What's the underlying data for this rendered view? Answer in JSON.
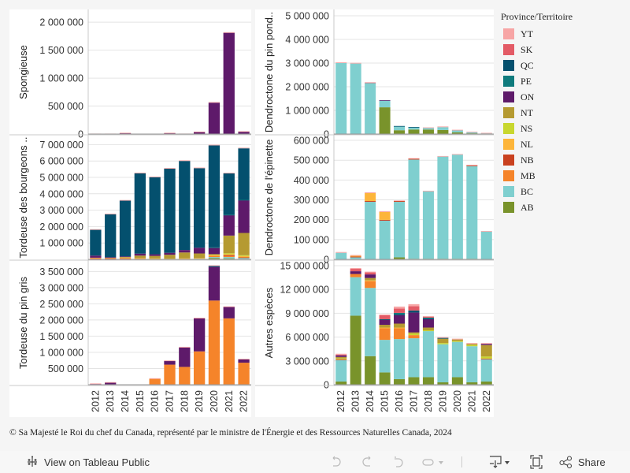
{
  "legend": {
    "title": "Province/Territoire",
    "items": [
      {
        "code": "YT",
        "color": "#f7a5a5"
      },
      {
        "code": "SK",
        "color": "#e35b66"
      },
      {
        "code": "QC",
        "color": "#04506e"
      },
      {
        "code": "PE",
        "color": "#0f7b7d"
      },
      {
        "code": "ON",
        "color": "#5e1a6a"
      },
      {
        "code": "NT",
        "color": "#b59a31"
      },
      {
        "code": "NS",
        "color": "#c8d72f"
      },
      {
        "code": "NL",
        "color": "#fdb53a"
      },
      {
        "code": "NB",
        "color": "#c9411f"
      },
      {
        "code": "MB",
        "color": "#f5842a"
      },
      {
        "code": "BC",
        "color": "#7fcfcf"
      },
      {
        "code": "AB",
        "color": "#79932b"
      }
    ]
  },
  "footer": {
    "copyright": "© Sa Majesté le Roi du chef du Canada, représenté par le ministre de l'Énergie et des Ressources Naturelles Canada, 2024"
  },
  "toolbar": {
    "view_label": "View on Tableau Public",
    "share_label": "Share",
    "icons": [
      "tableau-logo-icon",
      "undo-icon",
      "redo-icon",
      "revert-icon",
      "refresh-icon",
      "download-icon",
      "fullscreen-icon",
      "share-icon"
    ]
  },
  "chart_data": [
    {
      "type": "bar",
      "stacked": true,
      "title": "",
      "ylabel": "Spongieuse",
      "xlabel": "",
      "categories": [
        "2012",
        "2013",
        "2014",
        "2015",
        "2016",
        "2017",
        "2018",
        "2019",
        "2020",
        "2021",
        "2022"
      ],
      "ylim": [
        0,
        2200000
      ],
      "yticks": [
        0,
        500000,
        1000000,
        1500000,
        2000000
      ],
      "yticklabels": [
        "0",
        "500 000",
        "1 000 000",
        "1 500 000",
        "2 000 000"
      ],
      "show_xticks": false,
      "grid": true,
      "series": [
        {
          "name": "ON",
          "values": [
            0,
            0,
            15000,
            0,
            0,
            15000,
            0,
            35000,
            560000,
            1810000,
            40000
          ]
        },
        {
          "name": "YT",
          "values": [
            8000,
            8000,
            8000,
            0,
            0,
            8000,
            8000,
            8000,
            12000,
            12000,
            10000
          ]
        }
      ]
    },
    {
      "type": "bar",
      "stacked": true,
      "title": "",
      "ylabel": "Dendroctone du pin pond..",
      "xlabel": "",
      "categories": [
        "2012",
        "2013",
        "2014",
        "2015",
        "2016",
        "2017",
        "2018",
        "2019",
        "2020",
        "2021",
        "2022"
      ],
      "ylim": [
        0,
        5200000
      ],
      "yticks": [
        0,
        1000000,
        2000000,
        3000000,
        4000000,
        5000000
      ],
      "yticklabels": [
        "0",
        "1 000 000",
        "2 000 000",
        "3 000 000",
        "4 000 000",
        "5 000 000"
      ],
      "show_xticks": false,
      "grid": true,
      "series": [
        {
          "name": "AB",
          "values": [
            0,
            0,
            0,
            1130000,
            160000,
            190000,
            190000,
            170000,
            70000,
            30000,
            0
          ]
        },
        {
          "name": "BC",
          "values": [
            3000000,
            2980000,
            2160000,
            280000,
            160000,
            90000,
            60000,
            120000,
            80000,
            40000,
            30000
          ]
        },
        {
          "name": "QC",
          "values": [
            0,
            0,
            0,
            0,
            20000,
            20000,
            0,
            0,
            0,
            0,
            0
          ]
        },
        {
          "name": "ON",
          "values": [
            0,
            0,
            0,
            25000,
            0,
            0,
            0,
            0,
            0,
            0,
            0
          ]
        },
        {
          "name": "SK",
          "values": [
            0,
            0,
            20000,
            0,
            0,
            0,
            0,
            0,
            0,
            0,
            0
          ]
        },
        {
          "name": "YT",
          "values": [
            30000,
            30000,
            0,
            0,
            0,
            0,
            30000,
            30000,
            30000,
            30000,
            20000
          ]
        }
      ]
    },
    {
      "type": "bar",
      "stacked": true,
      "title": "",
      "ylabel": "Tordeuse des bourgeons ..",
      "xlabel": "",
      "categories": [
        "2012",
        "2013",
        "2014",
        "2015",
        "2016",
        "2017",
        "2018",
        "2019",
        "2020",
        "2021",
        "2022"
      ],
      "ylim": [
        0,
        7500000
      ],
      "yticks": [
        1000000,
        2000000,
        3000000,
        4000000,
        5000000,
        6000000,
        7000000
      ],
      "yticklabels": [
        "1 000 000",
        "2 000 000",
        "3 000 000",
        "4 000 000",
        "5 000 000",
        "6 000 000",
        "7 000 000"
      ],
      "show_xticks": false,
      "grid": true,
      "series": [
        {
          "name": "AB",
          "values": [
            0,
            0,
            0,
            0,
            0,
            0,
            0,
            0,
            80000,
            60000,
            30000
          ]
        },
        {
          "name": "BC",
          "values": [
            20000,
            0,
            0,
            0,
            0,
            0,
            0,
            40000,
            60000,
            80000,
            60000
          ]
        },
        {
          "name": "MB",
          "values": [
            0,
            0,
            0,
            0,
            0,
            0,
            0,
            0,
            80000,
            60000,
            0
          ]
        },
        {
          "name": "NB",
          "values": [
            40000,
            60000,
            60000,
            40000,
            0,
            0,
            0,
            0,
            0,
            60000,
            30000
          ]
        },
        {
          "name": "NL",
          "values": [
            40000,
            40000,
            50000,
            40000,
            60000,
            40000,
            60000,
            40000,
            40000,
            50000,
            80000
          ]
        },
        {
          "name": "NS",
          "values": [
            0,
            0,
            0,
            0,
            0,
            0,
            0,
            0,
            50000,
            60000,
            50000
          ]
        },
        {
          "name": "NT",
          "values": [
            0,
            0,
            40000,
            150000,
            150000,
            240000,
            360000,
            280000,
            0,
            1080000,
            1360000
          ]
        },
        {
          "name": "ON",
          "values": [
            130000,
            30000,
            30000,
            120000,
            100000,
            120000,
            150000,
            350000,
            400000,
            1250000,
            2000000
          ]
        },
        {
          "name": "PE",
          "values": [
            0,
            0,
            0,
            0,
            0,
            0,
            0,
            0,
            20000,
            20000,
            20000
          ]
        },
        {
          "name": "QC",
          "values": [
            1570000,
            2620000,
            3400000,
            4900000,
            4700000,
            5130000,
            5430000,
            4850000,
            6220000,
            2520000,
            3140000
          ]
        },
        {
          "name": "YT",
          "values": [
            40000,
            40000,
            40000,
            40000,
            40000,
            40000,
            40000,
            40000,
            40000,
            40000,
            40000
          ]
        }
      ]
    },
    {
      "type": "bar",
      "stacked": true,
      "title": "",
      "ylabel": "Dendroctone de l'épinette",
      "xlabel": "",
      "categories": [
        "2012",
        "2013",
        "2014",
        "2015",
        "2016",
        "2017",
        "2018",
        "2019",
        "2020",
        "2021",
        "2022"
      ],
      "ylim": [
        0,
        620000
      ],
      "yticks": [
        0,
        100000,
        200000,
        300000,
        400000,
        500000,
        600000
      ],
      "yticklabels": [
        "0",
        "100 000",
        "200 000",
        "300 000",
        "400 000",
        "500 000",
        "600 000"
      ],
      "show_xticks": false,
      "grid": true,
      "series": [
        {
          "name": "AB",
          "values": [
            0,
            0,
            0,
            0,
            10000,
            3000,
            3000,
            3000,
            3000,
            3000,
            0
          ]
        },
        {
          "name": "BC",
          "values": [
            33000,
            10000,
            290000,
            195000,
            280000,
            500000,
            340000,
            515000,
            525000,
            467000,
            140000
          ]
        },
        {
          "name": "NB",
          "values": [
            0,
            4000,
            4000,
            4000,
            4000,
            4000,
            0,
            0,
            0,
            4000,
            0
          ]
        },
        {
          "name": "NL",
          "values": [
            0,
            4000,
            40000,
            40000,
            0,
            0,
            0,
            0,
            0,
            0,
            0
          ]
        },
        {
          "name": "YT",
          "values": [
            4000,
            4000,
            4000,
            4000,
            3000,
            3000,
            3000,
            3000,
            3000,
            3000,
            3000
          ]
        }
      ]
    },
    {
      "type": "bar",
      "stacked": true,
      "title": "",
      "ylabel": "Tordeuse du pin gris",
      "xlabel": "",
      "categories": [
        "2012",
        "2013",
        "2014",
        "2015",
        "2016",
        "2017",
        "2018",
        "2019",
        "2020",
        "2021",
        "2022"
      ],
      "ylim": [
        0,
        3800000
      ],
      "yticks": [
        500000,
        1000000,
        1500000,
        2000000,
        2500000,
        3000000,
        3500000
      ],
      "yticklabels": [
        "500 000",
        "1 000 000",
        "1 500 000",
        "2 000 000",
        "2 500 000",
        "3 000 000",
        "3 500 000"
      ],
      "show_xticks": true,
      "grid": true,
      "series": [
        {
          "name": "MB",
          "values": [
            0,
            0,
            0,
            0,
            180000,
            620000,
            550000,
            1030000,
            2600000,
            2050000,
            680000
          ]
        },
        {
          "name": "ON",
          "values": [
            20000,
            60000,
            0,
            0,
            0,
            110000,
            600000,
            1020000,
            1040000,
            350000,
            100000
          ]
        },
        {
          "name": "QC",
          "values": [
            0,
            0,
            0,
            0,
            0,
            0,
            0,
            0,
            30000,
            0,
            0
          ]
        },
        {
          "name": "YT",
          "values": [
            20000,
            20000,
            10000,
            10000,
            20000,
            20000,
            20000,
            20000,
            20000,
            20000,
            20000
          ]
        }
      ]
    },
    {
      "type": "bar",
      "stacked": true,
      "title": "",
      "ylabel": "Autres espèces",
      "xlabel": "",
      "categories": [
        "2012",
        "2013",
        "2014",
        "2015",
        "2016",
        "2017",
        "2018",
        "2019",
        "2020",
        "2021",
        "2022"
      ],
      "ylim": [
        0,
        15500000
      ],
      "yticks": [
        0,
        3000000,
        6000000,
        9000000,
        12000000,
        15000000
      ],
      "yticklabels": [
        "0",
        "3 000 000",
        "6 000 000",
        "9 000 000",
        "12 000 000",
        "15 000 000"
      ],
      "show_xticks": true,
      "grid": true,
      "series": [
        {
          "name": "AB",
          "values": [
            400000,
            8700000,
            3600000,
            1550000,
            700000,
            950000,
            950000,
            300000,
            950000,
            300000,
            400000
          ]
        },
        {
          "name": "BC",
          "values": [
            2700000,
            4850000,
            8600000,
            4100000,
            5050000,
            4900000,
            5800000,
            4800000,
            4450000,
            4550000,
            2800000
          ]
        },
        {
          "name": "NB",
          "values": [
            100000,
            0,
            0,
            0,
            0,
            0,
            0,
            0,
            0,
            0,
            100000
          ]
        },
        {
          "name": "MB",
          "values": [
            0,
            400000,
            850000,
            1450000,
            1350000,
            400000,
            0,
            0,
            0,
            0,
            0
          ]
        },
        {
          "name": "NL",
          "values": [
            0,
            0,
            100000,
            100000,
            100000,
            0,
            0,
            0,
            0,
            0,
            0
          ]
        },
        {
          "name": "NS",
          "values": [
            100000,
            0,
            0,
            0,
            0,
            200000,
            100000,
            150000,
            100000,
            150000,
            250000
          ]
        },
        {
          "name": "NT",
          "values": [
            200000,
            0,
            300000,
            350000,
            500000,
            150000,
            350000,
            550000,
            200000,
            150000,
            1450000
          ]
        },
        {
          "name": "ON",
          "values": [
            200000,
            350000,
            450000,
            600000,
            1050000,
            2500000,
            1050000,
            0,
            0,
            0,
            150000
          ]
        },
        {
          "name": "QC",
          "values": [
            0,
            0,
            0,
            100000,
            150000,
            250000,
            100000,
            100000,
            0,
            0,
            0
          ]
        },
        {
          "name": "PE",
          "values": [
            0,
            0,
            0,
            0,
            150000,
            0,
            100000,
            0,
            0,
            0,
            0
          ]
        },
        {
          "name": "SK",
          "values": [
            100000,
            300000,
            250000,
            500000,
            550000,
            550000,
            100000,
            0,
            0,
            0,
            0
          ]
        },
        {
          "name": "YT",
          "values": [
            100000,
            100000,
            100000,
            100000,
            250000,
            250000,
            100000,
            100000,
            100000,
            100000,
            100000
          ]
        }
      ]
    }
  ]
}
